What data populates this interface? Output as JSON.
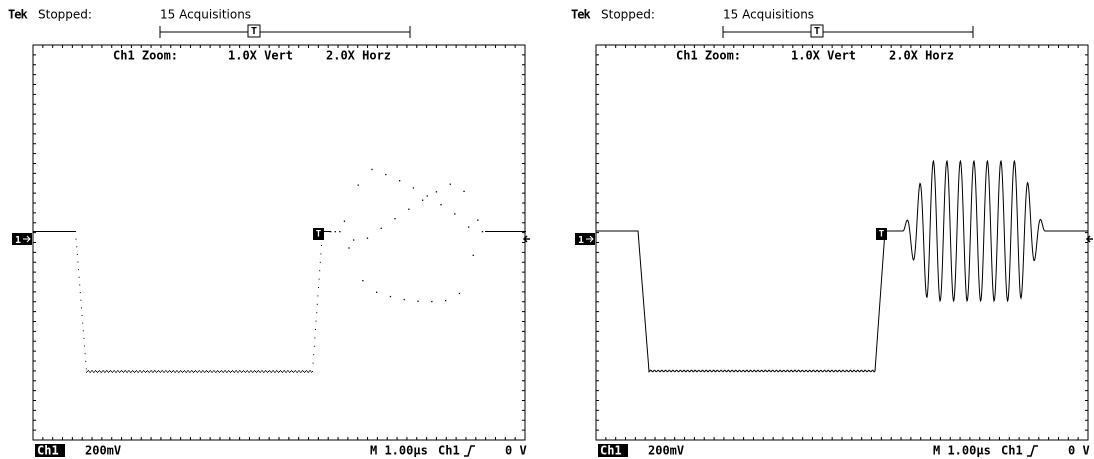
{
  "panels": [
    {
      "header": {
        "brand": "Tek",
        "status": "Stopped:",
        "acquisitions": "15 Acquisitions",
        "trigger_marker": "T"
      },
      "zoom": {
        "label": "Ch1 Zoom:",
        "vert": "1.0X Vert",
        "horz": "2.0X Horz"
      },
      "footer": {
        "channel": "Ch1",
        "scale": "200mV",
        "timebase": "M 1.00µs",
        "trigger_source": "Ch1",
        "trigger_level": "0 V"
      },
      "channel_marker": "1",
      "trace_marker": "T"
    },
    {
      "header": {
        "brand": "Tek",
        "status": "Stopped:",
        "acquisitions": "15 Acquisitions",
        "trigger_marker": "T"
      },
      "zoom": {
        "label": "Ch1 Zoom:",
        "vert": "1.0X Vert",
        "horz": "2.0X Horz"
      },
      "footer": {
        "channel": "Ch1",
        "scale": "200mV",
        "timebase": "M 1.00µs",
        "trigger_source": "Ch1",
        "trigger_level": "0 V"
      },
      "channel_marker": "1",
      "trace_marker": "T"
    }
  ]
}
